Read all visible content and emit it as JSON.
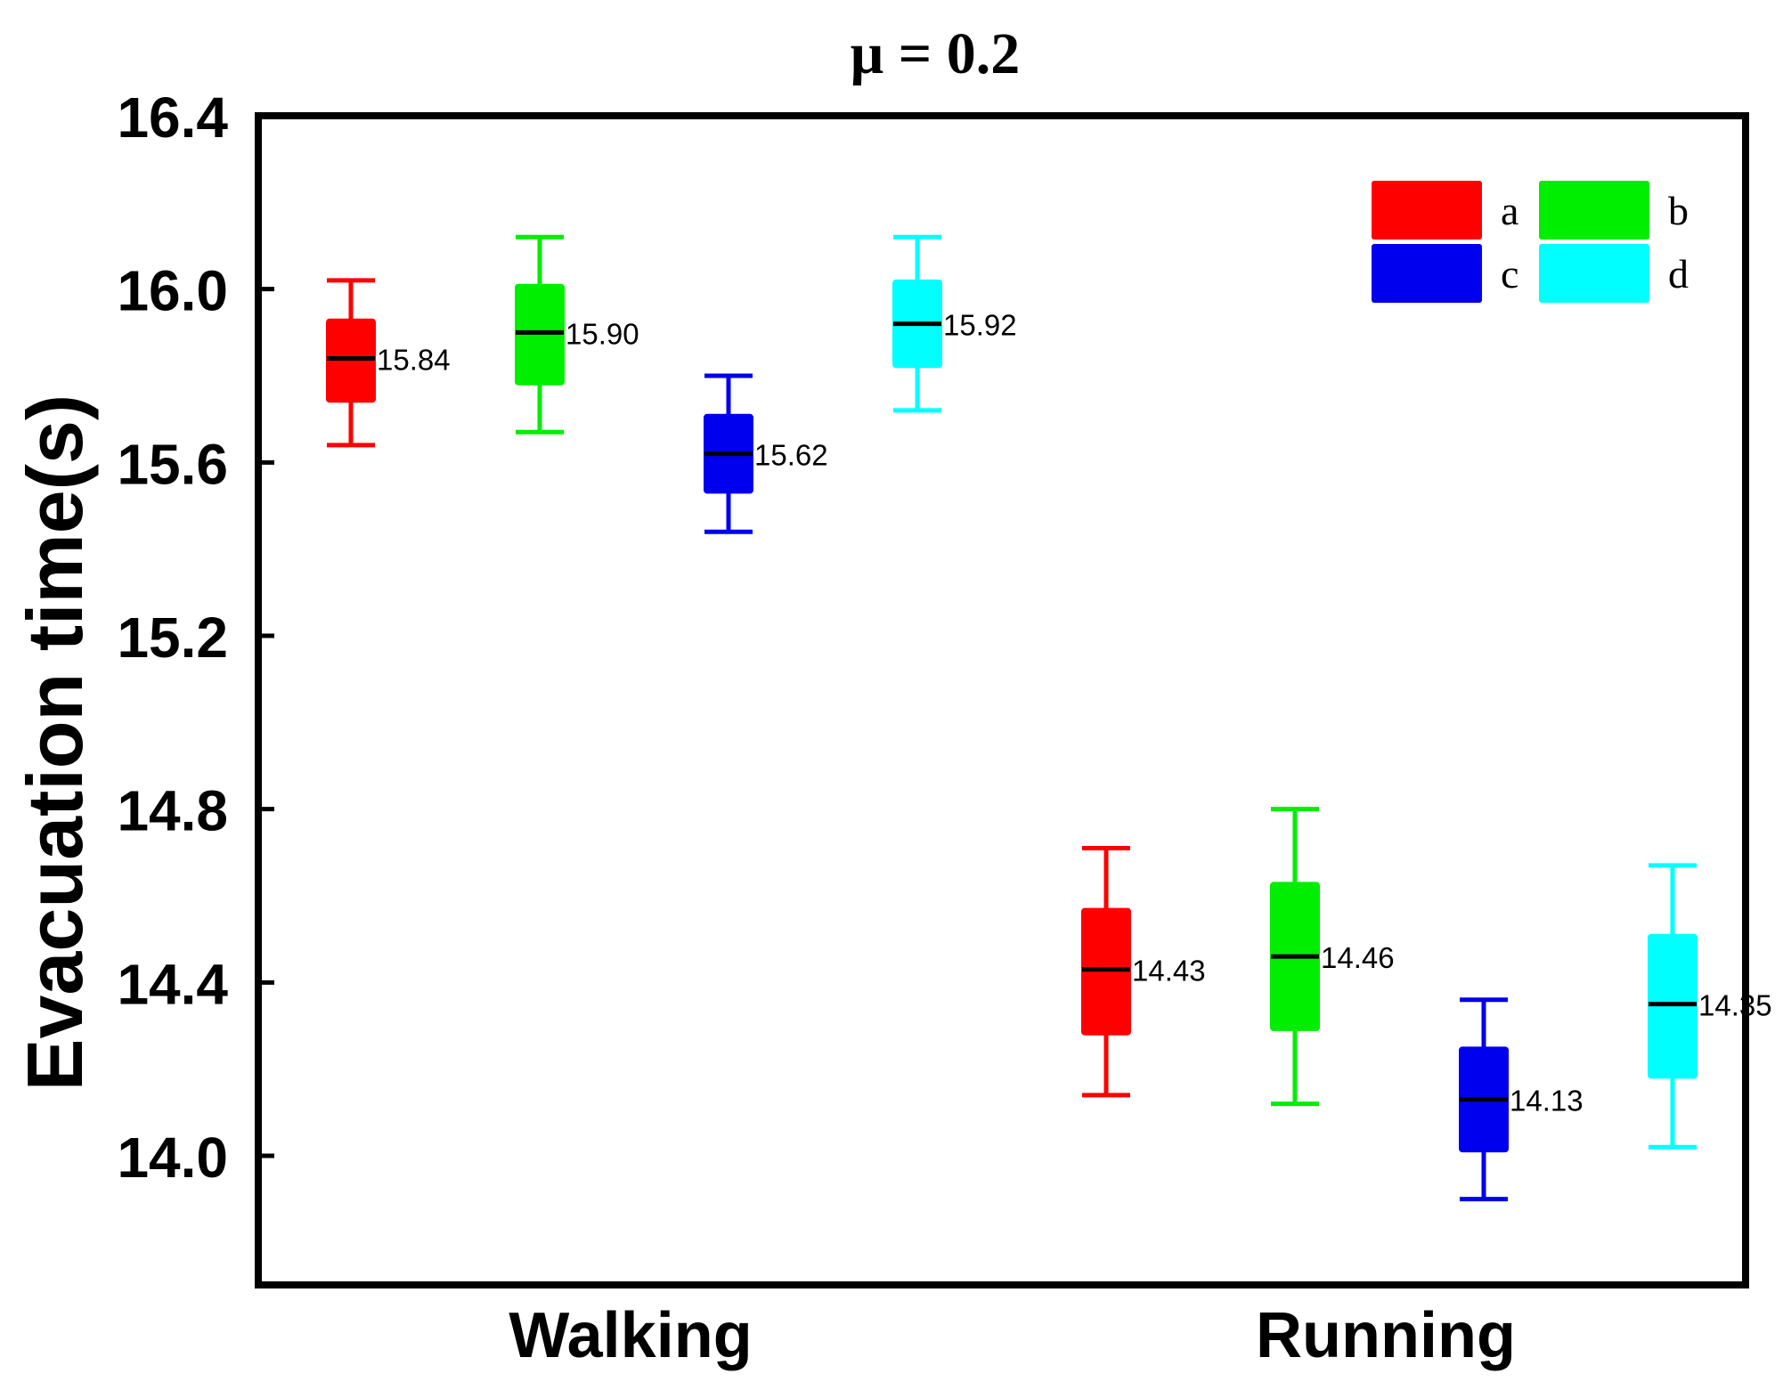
{
  "chart_data": {
    "type": "box",
    "title": "μ = 0.2",
    "xlabel": "",
    "ylabel": "Evacuation time(s)",
    "ylim": [
      13.7,
      16.4
    ],
    "yticks": [
      14.0,
      14.4,
      14.8,
      15.2,
      15.6,
      16.0,
      16.4
    ],
    "ytick_labels": [
      "14.0",
      "14.4",
      "14.8",
      "15.2",
      "15.6",
      "16.0",
      "16.4"
    ],
    "categories": [
      "Walking",
      "Running"
    ],
    "series": [
      {
        "name": "a",
        "color": "#ff0000",
        "boxes": [
          {
            "category": "Walking",
            "whisker_low": 15.64,
            "q1": 15.74,
            "median": 15.84,
            "q3": 15.93,
            "whisker_high": 16.02,
            "label": "15.84"
          },
          {
            "category": "Running",
            "whisker_low": 14.14,
            "q1": 14.28,
            "median": 14.43,
            "q3": 14.57,
            "whisker_high": 14.71,
            "label": "14.43"
          }
        ]
      },
      {
        "name": "b",
        "color": "#00ee00",
        "boxes": [
          {
            "category": "Walking",
            "whisker_low": 15.67,
            "q1": 15.78,
            "median": 15.9,
            "q3": 16.01,
            "whisker_high": 16.12,
            "label": "15.90"
          },
          {
            "category": "Running",
            "whisker_low": 14.12,
            "q1": 14.29,
            "median": 14.46,
            "q3": 14.63,
            "whisker_high": 14.8,
            "label": "14.46"
          }
        ]
      },
      {
        "name": "c",
        "color": "#0000ee",
        "boxes": [
          {
            "category": "Walking",
            "whisker_low": 15.44,
            "q1": 15.53,
            "median": 15.62,
            "q3": 15.71,
            "whisker_high": 15.8,
            "label": "15.62"
          },
          {
            "category": "Running",
            "whisker_low": 13.9,
            "q1": 14.01,
            "median": 14.13,
            "q3": 14.25,
            "whisker_high": 14.36,
            "label": "14.13"
          }
        ]
      },
      {
        "name": "d",
        "color": "#00ffff",
        "boxes": [
          {
            "category": "Walking",
            "whisker_low": 15.72,
            "q1": 15.82,
            "median": 15.92,
            "q3": 16.02,
            "whisker_high": 16.12,
            "label": "15.92"
          },
          {
            "category": "Running",
            "whisker_low": 14.02,
            "q1": 14.18,
            "median": 14.35,
            "q3": 14.51,
            "whisker_high": 14.67,
            "label": "14.35"
          }
        ]
      }
    ],
    "legend": {
      "placement": "top-right",
      "columns": 2,
      "entries": [
        "a",
        "b",
        "c",
        "d"
      ]
    },
    "grid": false
  }
}
